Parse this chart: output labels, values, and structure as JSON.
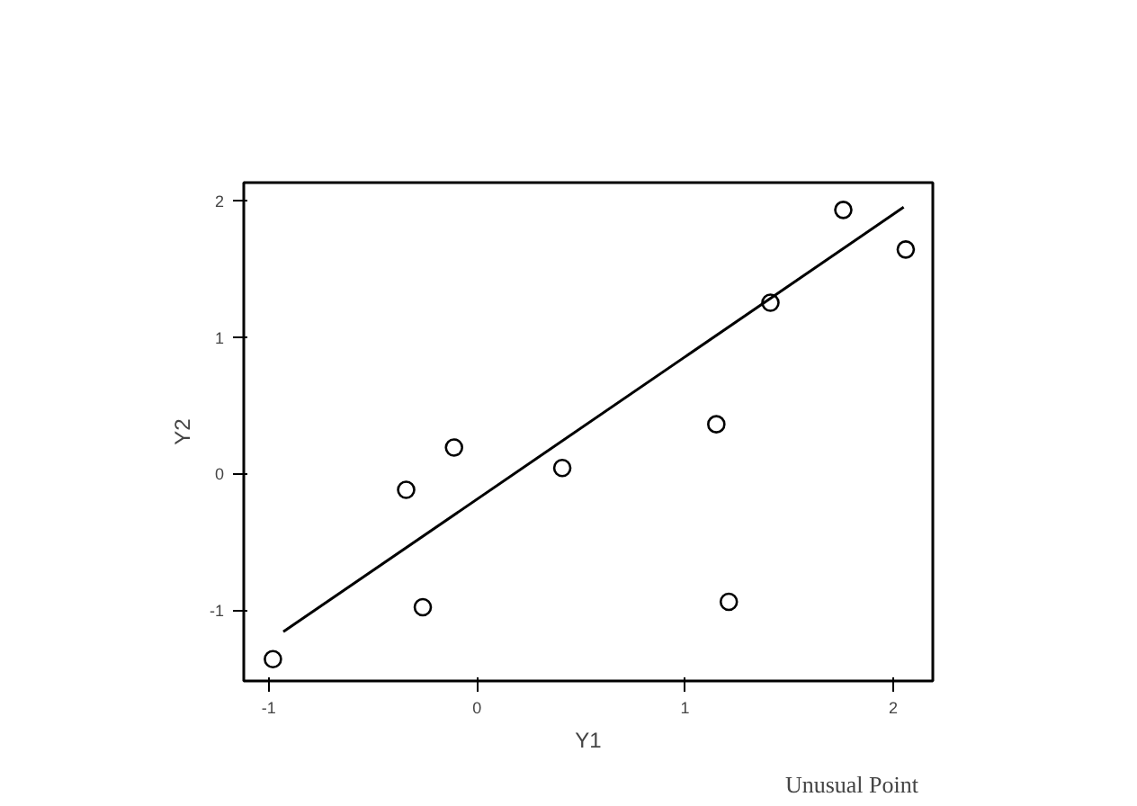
{
  "chart_data": {
    "type": "scatter",
    "xlabel": "Y1",
    "ylabel": "Y2",
    "xlim": [
      -1.12,
      2.19
    ],
    "ylim": [
      -1.52,
      2.13
    ],
    "xticks": [
      -1,
      0,
      1,
      2
    ],
    "yticks": [
      -1,
      0,
      1,
      2
    ],
    "grid": false,
    "series": [
      {
        "type": "scatter",
        "marker": "circle",
        "color": "#000000",
        "x": [
          -0.98,
          -0.34,
          -0.26,
          -0.11,
          0.41,
          1.15,
          1.21,
          1.41,
          1.76,
          2.06
        ],
        "values": [
          -1.36,
          -0.12,
          -0.98,
          0.19,
          0.04,
          0.36,
          -0.94,
          1.25,
          1.93,
          1.64
        ]
      },
      {
        "type": "line",
        "marker": "none",
        "color": "#000000",
        "line_style": "solid",
        "x": [
          -0.93,
          2.05
        ],
        "values": [
          -1.16,
          1.95
        ]
      }
    ],
    "annotations": [
      "Unusual Point"
    ]
  }
}
